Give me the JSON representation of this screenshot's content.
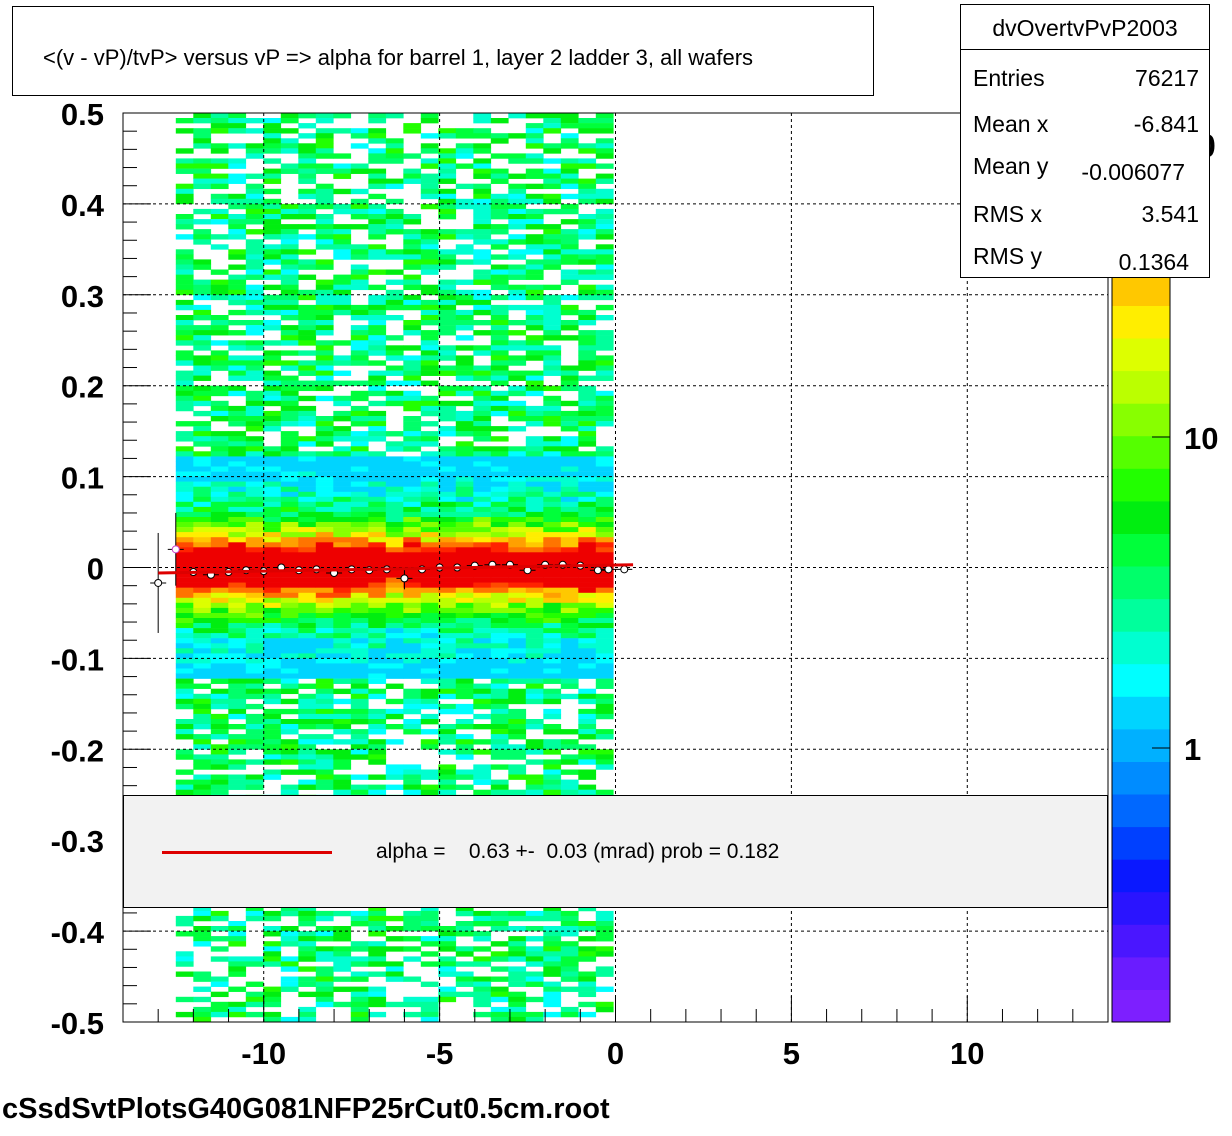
{
  "title": "<(v - vP)/tvP> versus   vP => alpha for barrel 1, layer 2 ladder 3, all wafers",
  "stats": {
    "name": "dvOvertvPvP2003",
    "rows": [
      {
        "label": "Entries",
        "value": "76217"
      },
      {
        "label": "Mean x",
        "value": "-6.841"
      },
      {
        "label": "Mean y",
        "value": "-0.006077"
      },
      {
        "label": "RMS x",
        "value": "3.541"
      },
      {
        "label": "RMS y",
        "value": "0.1364"
      }
    ]
  },
  "fit_legend": "alpha =    0.63 +-  0.03 (mrad) prob = 0.182",
  "filename": "cSsdSvtPlotsG40G081NFP25rCut0.5cm.root",
  "colorbar_partial_label": "0",
  "colors": {
    "fit_line": "#dd0000",
    "legend_fill": "#f2f2f2"
  },
  "chart_data": {
    "type": "heatmap",
    "xlim": [
      -14,
      14
    ],
    "ylim": [
      -0.5,
      0.5
    ],
    "x_ticks": [
      -10,
      -5,
      0,
      5,
      10
    ],
    "y_ticks": [
      -0.5,
      -0.4,
      -0.3,
      -0.2,
      -0.1,
      0,
      0.1,
      0.2,
      0.3,
      0.4,
      0.5
    ],
    "grid": true,
    "filled_x_range": [
      -12.5,
      0.1
    ],
    "colorbar_log": true,
    "colorbar_ticks": [
      "1",
      "10"
    ],
    "profile_points": {
      "x": [
        -13.0,
        -12.5,
        -12.0,
        -11.5,
        -11.0,
        -10.5,
        -10.0,
        -9.5,
        -9.0,
        -8.5,
        -8.0,
        -7.5,
        -7.0,
        -6.5,
        -6.0,
        -5.5,
        -5.0,
        -4.5,
        -4.0,
        -3.5,
        -3.0,
        -2.5,
        -2.0,
        -1.5,
        -1.0,
        -0.5,
        -0.2,
        0.25
      ],
      "y": [
        -0.017,
        0.02,
        -0.005,
        -0.008,
        -0.005,
        -0.003,
        -0.004,
        0.0,
        -0.003,
        -0.002,
        -0.006,
        -0.002,
        -0.003,
        -0.002,
        -0.012,
        -0.002,
        0.0,
        0.0,
        0.002,
        0.003,
        0.003,
        -0.003,
        0.003,
        0.003,
        0.002,
        -0.003,
        -0.002,
        -0.002
      ],
      "err": [
        0.055,
        0.04,
        0.004,
        0.004,
        0.003,
        0.003,
        0.003,
        0.003,
        0.003,
        0.003,
        0.003,
        0.003,
        0.003,
        0.003,
        0.012,
        0.003,
        0.003,
        0.003,
        0.003,
        0.003,
        0.003,
        0.003,
        0.003,
        0.003,
        0.003,
        0.003,
        0.004,
        0.004
      ]
    },
    "fit_line": {
      "x": [
        -13.0,
        0.5
      ],
      "y": [
        -0.006,
        0.003
      ]
    },
    "excluded_columns": [
      -6.1,
      -0.7
    ]
  }
}
